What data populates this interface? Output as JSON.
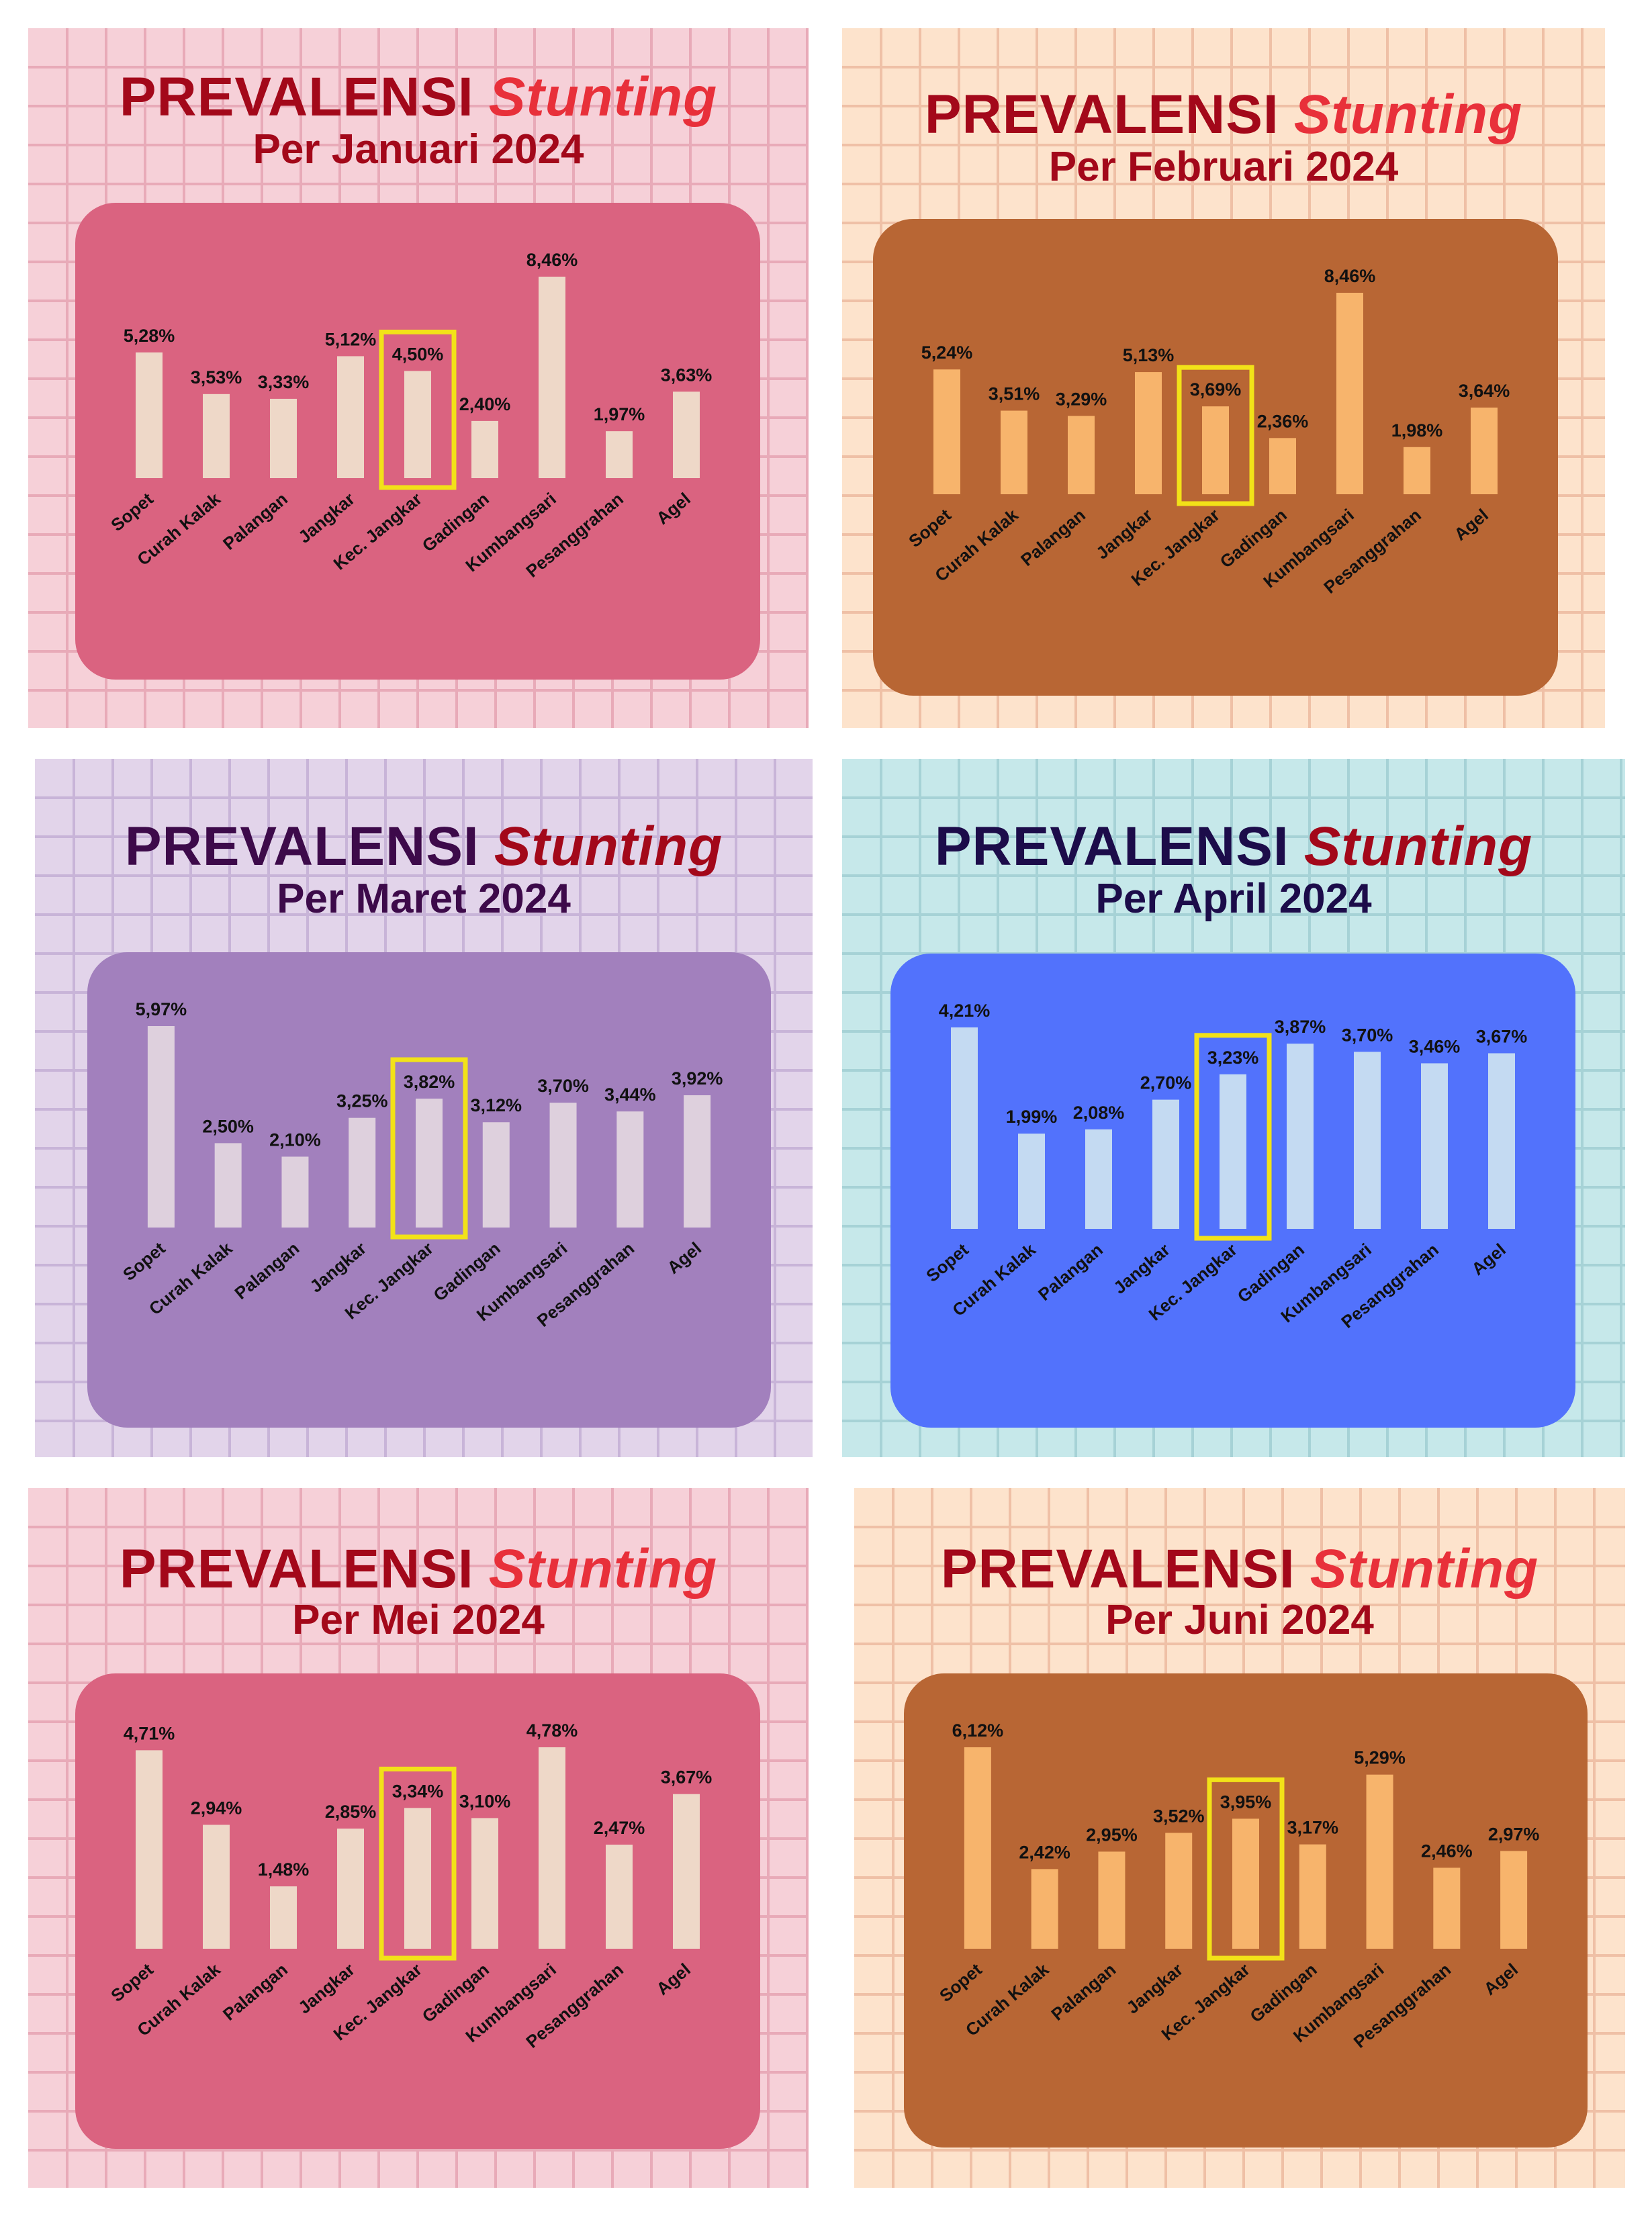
{
  "chart_data": [
    {
      "type": "bar",
      "title": "PREVALENSI",
      "title_italic": "Stunting",
      "subtitle": "Per Januari 2024",
      "categories": [
        "Sopet",
        "Curah Kalak",
        "Palangan",
        "Jangkar",
        "Kec. Jangkar",
        "Gadingan",
        "Kumbangsari",
        "Pesanggrahan",
        "Agel"
      ],
      "values": [
        5.28,
        3.53,
        3.33,
        5.12,
        4.5,
        2.4,
        8.46,
        1.97,
        3.63
      ],
      "labels": [
        "5,28%",
        "3,53%",
        "3,33%",
        "5,12%",
        "4,50%",
        "2,40%",
        "8,46%",
        "1,97%",
        "3,63%"
      ],
      "highlight": "Kec. Jangkar",
      "colors": {
        "background": "#f6d0d8",
        "grid": "#e8aab8",
        "title": "#a3081a",
        "title_italic": "#e8303a",
        "subtitle": "#a3081a",
        "panel": "#da6380",
        "bar": "#eed8c8",
        "highlight": "#f2e218",
        "label": "#111111"
      }
    },
    {
      "type": "bar",
      "title": "PREVALENSI",
      "title_italic": "Stunting",
      "subtitle": "Per Februari 2024",
      "categories": [
        "Sopet",
        "Curah Kalak",
        "Palangan",
        "Jangkar",
        "Kec. Jangkar",
        "Gadingan",
        "Kumbangsari",
        "Pesanggrahan",
        "Agel"
      ],
      "values": [
        5.24,
        3.51,
        3.29,
        5.13,
        3.69,
        2.36,
        8.46,
        1.98,
        3.64
      ],
      "labels": [
        "5,24%",
        "3,51%",
        "3,29%",
        "5,13%",
        "3,69%",
        "2,36%",
        "8,46%",
        "1,98%",
        "3,64%"
      ],
      "highlight": "Kec. Jangkar",
      "colors": {
        "background": "#fde3cc",
        "grid": "#efc0a6",
        "title": "#a3081a",
        "title_italic": "#e8303a",
        "subtitle": "#a3081a",
        "panel": "#b86634",
        "bar": "#f7b46c",
        "highlight": "#f2e218",
        "label": "#111111"
      }
    },
    {
      "type": "bar",
      "title": "PREVALENSI",
      "title_italic": "Stunting",
      "subtitle": "Per Maret 2024",
      "categories": [
        "Sopet",
        "Curah Kalak",
        "Palangan",
        "Jangkar",
        "Kec. Jangkar",
        "Gadingan",
        "Kumbangsari",
        "Pesanggrahan",
        "Agel"
      ],
      "values": [
        5.97,
        2.5,
        2.1,
        3.25,
        3.82,
        3.12,
        3.7,
        3.44,
        3.92
      ],
      "labels": [
        "5,97%",
        "2,50%",
        "2,10%",
        "3,25%",
        "3,82%",
        "3,12%",
        "3,70%",
        "3,44%",
        "3,92%"
      ],
      "highlight": "Kec. Jangkar",
      "colors": {
        "background": "#e2d4ea",
        "grid": "#c8b4d8",
        "title": "#3d0a4a",
        "title_italic": "#a3081a",
        "subtitle": "#3d0a4a",
        "panel": "#a280bd",
        "bar": "#ded0dd",
        "highlight": "#f2e218",
        "label": "#111111"
      }
    },
    {
      "type": "bar",
      "title": "PREVALENSI",
      "title_italic": "Stunting",
      "subtitle": "Per April 2024",
      "categories": [
        "Sopet",
        "Curah Kalak",
        "Palangan",
        "Jangkar",
        "Kec. Jangkar",
        "Gadingan",
        "Kumbangsari",
        "Pesanggrahan",
        "Agel"
      ],
      "values": [
        4.21,
        1.99,
        2.08,
        2.7,
        3.23,
        3.87,
        3.7,
        3.46,
        3.67
      ],
      "labels": [
        "4,21%",
        "1,99%",
        "2,08%",
        "2,70%",
        "3,23%",
        "3,87%",
        "3,70%",
        "3,46%",
        "3,67%"
      ],
      "highlight": "Kec. Jangkar",
      "colors": {
        "background": "#c6e8ea",
        "grid": "#a6d2d6",
        "title": "#1c0c4a",
        "title_italic": "#a3081a",
        "subtitle": "#1c0c4a",
        "panel": "#5272fc",
        "bar": "#c4daf2",
        "highlight": "#f2e218",
        "label": "#111111"
      }
    },
    {
      "type": "bar",
      "title": "PREVALENSI",
      "title_italic": "Stunting",
      "subtitle": "Per Mei 2024",
      "categories": [
        "Sopet",
        "Curah Kalak",
        "Palangan",
        "Jangkar",
        "Kec. Jangkar",
        "Gadingan",
        "Kumbangsari",
        "Pesanggrahan",
        "Agel"
      ],
      "values": [
        4.71,
        2.94,
        1.48,
        2.85,
        3.34,
        3.1,
        4.78,
        2.47,
        3.67
      ],
      "labels": [
        "4,71%",
        "2,94%",
        "1,48%",
        "2,85%",
        "3,34%",
        "3,10%",
        "4,78%",
        "2,47%",
        "3,67%"
      ],
      "highlight": "Kec. Jangkar",
      "colors": {
        "background": "#f6d0d8",
        "grid": "#e8aab8",
        "title": "#a3081a",
        "title_italic": "#e8303a",
        "subtitle": "#a3081a",
        "panel": "#da6380",
        "bar": "#eed8c8",
        "highlight": "#f2e218",
        "label": "#111111"
      }
    },
    {
      "type": "bar",
      "title": "PREVALENSI",
      "title_italic": "Stunting",
      "subtitle": "Per Juni 2024",
      "categories": [
        "Sopet",
        "Curah Kalak",
        "Palangan",
        "Jangkar",
        "Kec. Jangkar",
        "Gadingan",
        "Kumbangsari",
        "Pesanggrahan",
        "Agel"
      ],
      "values": [
        6.12,
        2.42,
        2.95,
        3.52,
        3.95,
        3.17,
        5.29,
        2.46,
        2.97
      ],
      "labels": [
        "6,12%",
        "2,42%",
        "2,95%",
        "3,52%",
        "3,95%",
        "3,17%",
        "5,29%",
        "2,46%",
        "2,97%"
      ],
      "highlight": "Kec. Jangkar",
      "colors": {
        "background": "#fde3cc",
        "grid": "#efc0a6",
        "title": "#a3081a",
        "title_italic": "#e8303a",
        "subtitle": "#a3081a",
        "panel": "#b86634",
        "bar": "#f7b46c",
        "highlight": "#f2e218",
        "label": "#111111"
      }
    }
  ]
}
